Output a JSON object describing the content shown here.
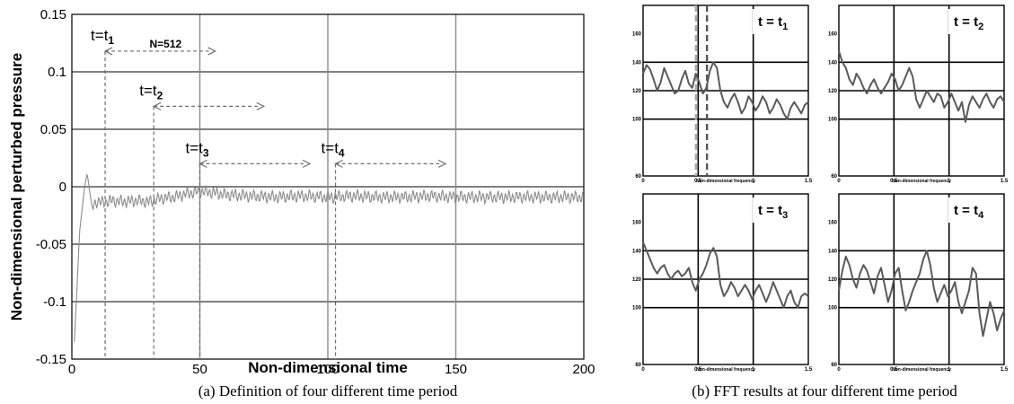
{
  "captions": {
    "a": "(a) Definition of four different time period",
    "b": "(b) FFT results at four different time period"
  },
  "colors": {
    "signal": "#8c8c8c",
    "grid": "#000000",
    "annotation": "#6e6e6e",
    "fft_line": "#5a5a5a",
    "marker_light": "#a8a8a8",
    "marker_dark": "#555555"
  },
  "chart_data": [
    {
      "type": "line",
      "panel": "a",
      "xlabel": "Non-dimensional time",
      "ylabel": "Non-dimensional perturbed pressure",
      "xlim": [
        0,
        200
      ],
      "ylim": [
        -0.15,
        0.15
      ],
      "x_ticks": [
        "0",
        "50",
        "100",
        "150",
        "200"
      ],
      "y_ticks": [
        "-0.15",
        "-0.1",
        "-0.05",
        "0",
        "0.05",
        "0.1",
        "0.15"
      ],
      "grid": "major lines at each tick",
      "series": [
        {
          "x": [
            1,
            2,
            3,
            4,
            5,
            6,
            7,
            8,
            10,
            12,
            15,
            20,
            25,
            30,
            35,
            40,
            45,
            50,
            55,
            60,
            70,
            80,
            90,
            100,
            110,
            120,
            130,
            140,
            150,
            160,
            170,
            180,
            190,
            200
          ],
          "values": [
            -0.135,
            -0.09,
            -0.04,
            -0.02,
            0.0,
            0.012,
            -0.005,
            -0.018,
            -0.012,
            -0.014,
            -0.012,
            -0.013,
            -0.012,
            -0.013,
            -0.01,
            -0.009,
            -0.006,
            -0.004,
            -0.005,
            -0.007,
            -0.008,
            -0.009,
            -0.008,
            -0.009,
            -0.008,
            -0.009,
            -0.009,
            -0.008,
            -0.009,
            -0.009,
            -0.009,
            -0.009,
            -0.009,
            -0.009
          ]
        }
      ],
      "annotations": [
        {
          "label": "t=t",
          "sub": "1",
          "start": 13,
          "end": 56,
          "level": 0.118
        },
        {
          "label": "t=t",
          "sub": "2",
          "start": 32,
          "end": 75,
          "level": 0.07
        },
        {
          "label": "t=t",
          "sub": "3",
          "start": 50,
          "end": 93,
          "level": 0.02
        },
        {
          "label": "t=t",
          "sub": "4",
          "start": 103,
          "end": 146,
          "level": 0.02
        }
      ],
      "window_label": "N=512"
    },
    {
      "type": "line",
      "panel": "b",
      "xlabel": "Non-dimensional frequency",
      "xlim": [
        0,
        1.5
      ],
      "ylim": [
        60,
        180
      ],
      "x_ticks": [
        "0",
        "0.5",
        "1",
        "1.5"
      ],
      "y_ticks": [
        "60",
        "100",
        "120",
        "140",
        "160"
      ],
      "subplots": [
        {
          "label": "t = t",
          "sub": "1",
          "markers": [
            0.48,
            0.58
          ],
          "values": [
            132,
            138,
            135,
            128,
            120,
            126,
            136,
            130,
            124,
            118,
            120,
            128,
            134,
            125,
            122,
            132,
            126,
            118,
            122,
            134,
            140,
            136,
            120,
            112,
            108,
            114,
            118,
            112,
            104,
            108,
            116,
            112,
            106,
            110,
            116,
            112,
            104,
            108,
            114,
            110,
            104,
            100,
            108,
            112,
            108,
            104,
            110,
            112
          ]
        },
        {
          "label": "t = t",
          "sub": "2",
          "values": [
            148,
            140,
            136,
            128,
            124,
            132,
            128,
            122,
            118,
            124,
            128,
            122,
            118,
            122,
            126,
            132,
            128,
            120,
            124,
            130,
            136,
            130,
            114,
            108,
            114,
            120,
            116,
            112,
            118,
            116,
            108,
            112,
            118,
            112,
            106,
            112,
            98,
            110,
            116,
            112,
            108,
            114,
            118,
            112,
            108,
            114,
            116,
            112
          ]
        },
        {
          "label": "t = t",
          "sub": "3",
          "values": [
            146,
            140,
            134,
            128,
            124,
            128,
            130,
            124,
            120,
            124,
            126,
            122,
            124,
            128,
            118,
            112,
            120,
            124,
            130,
            138,
            142,
            136,
            116,
            108,
            112,
            118,
            114,
            108,
            112,
            116,
            112,
            106,
            112,
            116,
            110,
            104,
            110,
            118,
            112,
            106,
            100,
            108,
            112,
            104,
            100,
            108,
            110,
            108
          ]
        },
        {
          "label": "t = t",
          "sub": "4",
          "values": [
            112,
            126,
            136,
            130,
            120,
            114,
            124,
            130,
            126,
            118,
            110,
            122,
            128,
            116,
            104,
            112,
            124,
            128,
            112,
            98,
            104,
            112,
            118,
            124,
            134,
            140,
            130,
            114,
            104,
            110,
            116,
            108,
            112,
            118,
            104,
            96,
            104,
            112,
            128,
            124,
            96,
            80,
            92,
            104,
            96,
            84,
            92,
            98
          ]
        }
      ]
    }
  ]
}
